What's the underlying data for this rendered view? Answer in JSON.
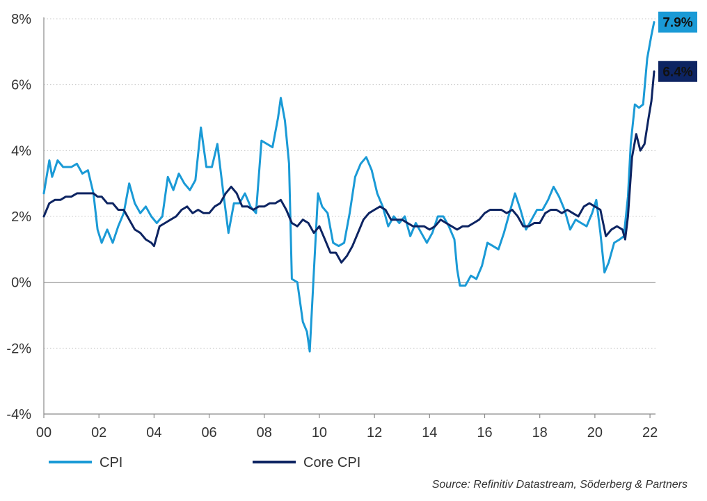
{
  "chart_data": {
    "type": "line",
    "x_tick_labels": [
      "00",
      "02",
      "04",
      "06",
      "08",
      "10",
      "12",
      "14",
      "16",
      "18",
      "20",
      "22"
    ],
    "x_ticks": [
      2000,
      2002,
      2004,
      2006,
      2008,
      2010,
      2012,
      2014,
      2016,
      2018,
      2020,
      2022
    ],
    "xlim": [
      2000,
      2022.2
    ],
    "y_tick_labels": [
      "8%",
      "6%",
      "4%",
      "2%",
      "0%",
      "-2%",
      "-4%"
    ],
    "y_ticks": [
      8,
      6,
      4,
      2,
      0,
      -2,
      -4
    ],
    "ylim": [
      -4,
      8
    ],
    "grid": "horizontal dotted",
    "legend_position": "bottom-left",
    "series": [
      {
        "name": "CPI",
        "color": "#1a9ad6",
        "end_label": "7.9%",
        "points": [
          [
            2000.0,
            2.7
          ],
          [
            2000.2,
            3.7
          ],
          [
            2000.3,
            3.2
          ],
          [
            2000.5,
            3.7
          ],
          [
            2000.7,
            3.5
          ],
          [
            2001.0,
            3.5
          ],
          [
            2001.2,
            3.6
          ],
          [
            2001.4,
            3.3
          ],
          [
            2001.6,
            3.4
          ],
          [
            2001.8,
            2.7
          ],
          [
            2001.95,
            1.6
          ],
          [
            2002.1,
            1.2
          ],
          [
            2002.3,
            1.6
          ],
          [
            2002.5,
            1.2
          ],
          [
            2002.7,
            1.7
          ],
          [
            2002.9,
            2.1
          ],
          [
            2003.1,
            3.0
          ],
          [
            2003.3,
            2.4
          ],
          [
            2003.5,
            2.1
          ],
          [
            2003.7,
            2.3
          ],
          [
            2003.9,
            2.0
          ],
          [
            2004.1,
            1.8
          ],
          [
            2004.3,
            2.0
          ],
          [
            2004.5,
            3.2
          ],
          [
            2004.7,
            2.8
          ],
          [
            2004.9,
            3.3
          ],
          [
            2005.1,
            3.0
          ],
          [
            2005.3,
            2.8
          ],
          [
            2005.5,
            3.1
          ],
          [
            2005.7,
            4.7
          ],
          [
            2005.9,
            3.5
          ],
          [
            2006.1,
            3.5
          ],
          [
            2006.3,
            4.2
          ],
          [
            2006.5,
            2.8
          ],
          [
            2006.7,
            1.5
          ],
          [
            2006.9,
            2.4
          ],
          [
            2007.1,
            2.4
          ],
          [
            2007.3,
            2.7
          ],
          [
            2007.5,
            2.3
          ],
          [
            2007.7,
            2.1
          ],
          [
            2007.9,
            4.3
          ],
          [
            2008.1,
            4.2
          ],
          [
            2008.3,
            4.1
          ],
          [
            2008.5,
            5.0
          ],
          [
            2008.6,
            5.6
          ],
          [
            2008.75,
            4.9
          ],
          [
            2008.9,
            3.6
          ],
          [
            2009.0,
            0.1
          ],
          [
            2009.2,
            0.0
          ],
          [
            2009.4,
            -1.2
          ],
          [
            2009.55,
            -1.5
          ],
          [
            2009.65,
            -2.1
          ],
          [
            2009.8,
            0.3
          ],
          [
            2009.95,
            2.7
          ],
          [
            2010.1,
            2.3
          ],
          [
            2010.3,
            2.1
          ],
          [
            2010.5,
            1.2
          ],
          [
            2010.7,
            1.1
          ],
          [
            2010.9,
            1.2
          ],
          [
            2011.1,
            2.1
          ],
          [
            2011.3,
            3.2
          ],
          [
            2011.5,
            3.6
          ],
          [
            2011.7,
            3.8
          ],
          [
            2011.9,
            3.4
          ],
          [
            2012.1,
            2.7
          ],
          [
            2012.3,
            2.3
          ],
          [
            2012.5,
            1.7
          ],
          [
            2012.7,
            2.0
          ],
          [
            2012.9,
            1.8
          ],
          [
            2013.1,
            2.0
          ],
          [
            2013.3,
            1.4
          ],
          [
            2013.5,
            1.8
          ],
          [
            2013.7,
            1.5
          ],
          [
            2013.9,
            1.2
          ],
          [
            2014.1,
            1.5
          ],
          [
            2014.3,
            2.0
          ],
          [
            2014.5,
            2.0
          ],
          [
            2014.7,
            1.7
          ],
          [
            2014.9,
            1.3
          ],
          [
            2015.0,
            0.4
          ],
          [
            2015.1,
            -0.1
          ],
          [
            2015.3,
            -0.1
          ],
          [
            2015.5,
            0.2
          ],
          [
            2015.7,
            0.1
          ],
          [
            2015.9,
            0.5
          ],
          [
            2016.1,
            1.2
          ],
          [
            2016.3,
            1.1
          ],
          [
            2016.5,
            1.0
          ],
          [
            2016.7,
            1.5
          ],
          [
            2016.9,
            2.1
          ],
          [
            2017.1,
            2.7
          ],
          [
            2017.3,
            2.2
          ],
          [
            2017.5,
            1.6
          ],
          [
            2017.7,
            1.9
          ],
          [
            2017.9,
            2.2
          ],
          [
            2018.1,
            2.2
          ],
          [
            2018.3,
            2.5
          ],
          [
            2018.5,
            2.9
          ],
          [
            2018.7,
            2.6
          ],
          [
            2018.9,
            2.2
          ],
          [
            2019.1,
            1.6
          ],
          [
            2019.3,
            1.9
          ],
          [
            2019.5,
            1.8
          ],
          [
            2019.7,
            1.7
          ],
          [
            2019.9,
            2.1
          ],
          [
            2020.05,
            2.5
          ],
          [
            2020.2,
            1.5
          ],
          [
            2020.35,
            0.3
          ],
          [
            2020.5,
            0.6
          ],
          [
            2020.7,
            1.2
          ],
          [
            2020.9,
            1.3
          ],
          [
            2021.05,
            1.4
          ],
          [
            2021.2,
            2.6
          ],
          [
            2021.3,
            4.2
          ],
          [
            2021.45,
            5.4
          ],
          [
            2021.6,
            5.3
          ],
          [
            2021.75,
            5.4
          ],
          [
            2021.9,
            6.8
          ],
          [
            2022.05,
            7.5
          ],
          [
            2022.15,
            7.9
          ]
        ]
      },
      {
        "name": "Core CPI",
        "color": "#0d2462",
        "end_label": "6.4%",
        "points": [
          [
            2000.0,
            2.0
          ],
          [
            2000.2,
            2.4
          ],
          [
            2000.4,
            2.5
          ],
          [
            2000.6,
            2.5
          ],
          [
            2000.8,
            2.6
          ],
          [
            2001.0,
            2.6
          ],
          [
            2001.2,
            2.7
          ],
          [
            2001.4,
            2.7
          ],
          [
            2001.6,
            2.7
          ],
          [
            2001.8,
            2.7
          ],
          [
            2001.95,
            2.6
          ],
          [
            2002.1,
            2.6
          ],
          [
            2002.3,
            2.4
          ],
          [
            2002.5,
            2.4
          ],
          [
            2002.7,
            2.2
          ],
          [
            2002.9,
            2.2
          ],
          [
            2003.1,
            1.9
          ],
          [
            2003.3,
            1.6
          ],
          [
            2003.5,
            1.5
          ],
          [
            2003.7,
            1.3
          ],
          [
            2003.9,
            1.2
          ],
          [
            2004.0,
            1.1
          ],
          [
            2004.2,
            1.7
          ],
          [
            2004.4,
            1.8
          ],
          [
            2004.6,
            1.9
          ],
          [
            2004.8,
            2.0
          ],
          [
            2005.0,
            2.2
          ],
          [
            2005.2,
            2.3
          ],
          [
            2005.4,
            2.1
          ],
          [
            2005.6,
            2.2
          ],
          [
            2005.8,
            2.1
          ],
          [
            2006.0,
            2.1
          ],
          [
            2006.2,
            2.3
          ],
          [
            2006.4,
            2.4
          ],
          [
            2006.6,
            2.7
          ],
          [
            2006.8,
            2.9
          ],
          [
            2007.0,
            2.7
          ],
          [
            2007.2,
            2.3
          ],
          [
            2007.4,
            2.3
          ],
          [
            2007.6,
            2.2
          ],
          [
            2007.8,
            2.3
          ],
          [
            2008.0,
            2.3
          ],
          [
            2008.2,
            2.4
          ],
          [
            2008.4,
            2.4
          ],
          [
            2008.6,
            2.5
          ],
          [
            2008.8,
            2.2
          ],
          [
            2009.0,
            1.8
          ],
          [
            2009.2,
            1.7
          ],
          [
            2009.4,
            1.9
          ],
          [
            2009.6,
            1.8
          ],
          [
            2009.8,
            1.5
          ],
          [
            2010.0,
            1.7
          ],
          [
            2010.2,
            1.3
          ],
          [
            2010.4,
            0.9
          ],
          [
            2010.6,
            0.9
          ],
          [
            2010.8,
            0.6
          ],
          [
            2011.0,
            0.8
          ],
          [
            2011.2,
            1.1
          ],
          [
            2011.4,
            1.5
          ],
          [
            2011.6,
            1.9
          ],
          [
            2011.8,
            2.1
          ],
          [
            2012.0,
            2.2
          ],
          [
            2012.2,
            2.3
          ],
          [
            2012.4,
            2.2
          ],
          [
            2012.6,
            1.9
          ],
          [
            2012.8,
            1.9
          ],
          [
            2013.0,
            1.9
          ],
          [
            2013.2,
            1.8
          ],
          [
            2013.4,
            1.7
          ],
          [
            2013.6,
            1.7
          ],
          [
            2013.8,
            1.7
          ],
          [
            2014.0,
            1.6
          ],
          [
            2014.2,
            1.7
          ],
          [
            2014.4,
            1.9
          ],
          [
            2014.6,
            1.8
          ],
          [
            2014.8,
            1.7
          ],
          [
            2015.0,
            1.6
          ],
          [
            2015.2,
            1.7
          ],
          [
            2015.4,
            1.7
          ],
          [
            2015.6,
            1.8
          ],
          [
            2015.8,
            1.9
          ],
          [
            2016.0,
            2.1
          ],
          [
            2016.2,
            2.2
          ],
          [
            2016.4,
            2.2
          ],
          [
            2016.6,
            2.2
          ],
          [
            2016.8,
            2.1
          ],
          [
            2017.0,
            2.2
          ],
          [
            2017.2,
            2.0
          ],
          [
            2017.4,
            1.7
          ],
          [
            2017.6,
            1.7
          ],
          [
            2017.8,
            1.8
          ],
          [
            2018.0,
            1.8
          ],
          [
            2018.2,
            2.1
          ],
          [
            2018.4,
            2.2
          ],
          [
            2018.6,
            2.2
          ],
          [
            2018.8,
            2.1
          ],
          [
            2019.0,
            2.2
          ],
          [
            2019.2,
            2.1
          ],
          [
            2019.4,
            2.0
          ],
          [
            2019.6,
            2.3
          ],
          [
            2019.8,
            2.4
          ],
          [
            2020.0,
            2.3
          ],
          [
            2020.2,
            2.2
          ],
          [
            2020.4,
            1.4
          ],
          [
            2020.6,
            1.6
          ],
          [
            2020.8,
            1.7
          ],
          [
            2021.0,
            1.6
          ],
          [
            2021.1,
            1.3
          ],
          [
            2021.2,
            2.0
          ],
          [
            2021.35,
            3.8
          ],
          [
            2021.5,
            4.5
          ],
          [
            2021.65,
            4.0
          ],
          [
            2021.8,
            4.2
          ],
          [
            2021.95,
            5.0
          ],
          [
            2022.05,
            5.5
          ],
          [
            2022.15,
            6.4
          ]
        ]
      }
    ]
  },
  "legend": [
    {
      "label": "CPI",
      "color": "#1a9ad6"
    },
    {
      "label": "Core CPI",
      "color": "#0d2462"
    }
  ],
  "source": "Source: Refinitiv Datastream, Söderberg & Partners"
}
